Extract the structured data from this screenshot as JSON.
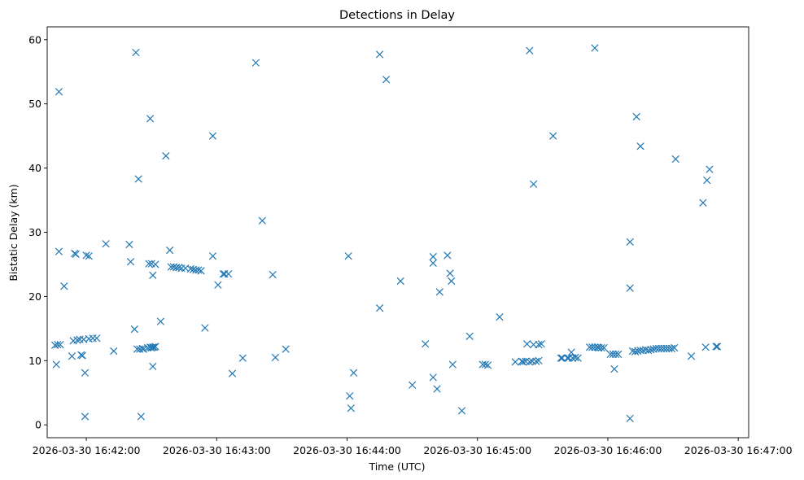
{
  "chart_data": {
    "type": "scatter",
    "title": "Detections in Delay",
    "xlabel": "Time (UTC)",
    "ylabel": "Bistatic Delay (km)",
    "marker": "x",
    "color": "#1f77b4",
    "x_unit": "minutes after 2026-03-30 16:41:00",
    "xlim": [
      0.7,
      6.08
    ],
    "ylim": [
      -2.0,
      62.0
    ],
    "x_ticks": [
      {
        "value": 1,
        "label": "2026-03-30 16:42:00"
      },
      {
        "value": 2,
        "label": "2026-03-30 16:43:00"
      },
      {
        "value": 3,
        "label": "2026-03-30 16:44:00"
      },
      {
        "value": 4,
        "label": "2026-03-30 16:45:00"
      },
      {
        "value": 5,
        "label": "2026-03-30 16:46:00"
      },
      {
        "value": 6,
        "label": "2026-03-30 16:47:00"
      }
    ],
    "y_ticks": [
      {
        "value": 0,
        "label": "0"
      },
      {
        "value": 10,
        "label": "10"
      },
      {
        "value": 20,
        "label": "20"
      },
      {
        "value": 30,
        "label": "30"
      },
      {
        "value": 40,
        "label": "40"
      },
      {
        "value": 50,
        "label": "50"
      },
      {
        "value": 60,
        "label": "60"
      }
    ],
    "points": [
      [
        0.76,
        12.4
      ],
      [
        0.78,
        12.5
      ],
      [
        0.8,
        12.5
      ],
      [
        0.77,
        9.4
      ],
      [
        0.79,
        51.9
      ],
      [
        0.79,
        27.0
      ],
      [
        0.83,
        21.6
      ],
      [
        0.89,
        10.7
      ],
      [
        0.9,
        13.1
      ],
      [
        0.91,
        26.7
      ],
      [
        0.92,
        26.6
      ],
      [
        0.93,
        13.2
      ],
      [
        0.95,
        13.3
      ],
      [
        0.96,
        10.9
      ],
      [
        0.97,
        10.8
      ],
      [
        0.98,
        13.3
      ],
      [
        0.99,
        8.1
      ],
      [
        0.99,
        1.3
      ],
      [
        1.0,
        26.4
      ],
      [
        1.02,
        26.3
      ],
      [
        1.02,
        13.4
      ],
      [
        1.05,
        13.5
      ],
      [
        1.08,
        13.5
      ],
      [
        1.15,
        28.2
      ],
      [
        1.21,
        11.5
      ],
      [
        1.33,
        28.1
      ],
      [
        1.34,
        25.4
      ],
      [
        1.37,
        14.9
      ],
      [
        1.38,
        58.0
      ],
      [
        1.39,
        11.8
      ],
      [
        1.4,
        38.3
      ],
      [
        1.41,
        11.8
      ],
      [
        1.42,
        1.3
      ],
      [
        1.43,
        11.9
      ],
      [
        1.44,
        11.8
      ],
      [
        1.47,
        12.0
      ],
      [
        1.49,
        12.1
      ],
      [
        1.5,
        12.0
      ],
      [
        1.51,
        12.1
      ],
      [
        1.52,
        12.1
      ],
      [
        1.53,
        12.2
      ],
      [
        1.48,
        25.1
      ],
      [
        1.5,
        25.1
      ],
      [
        1.53,
        25.0
      ],
      [
        1.49,
        47.7
      ],
      [
        1.51,
        23.3
      ],
      [
        1.51,
        9.1
      ],
      [
        1.57,
        16.1
      ],
      [
        1.61,
        41.9
      ],
      [
        1.64,
        27.2
      ],
      [
        1.65,
        24.6
      ],
      [
        1.67,
        24.6
      ],
      [
        1.69,
        24.5
      ],
      [
        1.71,
        24.5
      ],
      [
        1.73,
        24.4
      ],
      [
        1.76,
        24.4
      ],
      [
        1.8,
        24.3
      ],
      [
        1.82,
        24.2
      ],
      [
        1.84,
        24.1
      ],
      [
        1.86,
        24.1
      ],
      [
        1.88,
        24.0
      ],
      [
        1.91,
        15.1
      ],
      [
        1.97,
        26.3
      ],
      [
        1.97,
        45.0
      ],
      [
        2.01,
        21.8
      ],
      [
        2.05,
        23.5
      ],
      [
        2.06,
        23.5
      ],
      [
        2.09,
        23.5
      ],
      [
        2.12,
        8.0
      ],
      [
        2.2,
        10.4
      ],
      [
        2.3,
        56.4
      ],
      [
        2.35,
        31.8
      ],
      [
        2.43,
        23.4
      ],
      [
        2.45,
        10.5
      ],
      [
        2.53,
        11.8
      ],
      [
        3.01,
        26.3
      ],
      [
        3.02,
        4.5
      ],
      [
        3.03,
        2.6
      ],
      [
        3.05,
        8.1
      ],
      [
        3.25,
        57.7
      ],
      [
        3.25,
        18.2
      ],
      [
        3.3,
        53.8
      ],
      [
        3.41,
        22.4
      ],
      [
        3.5,
        6.2
      ],
      [
        3.6,
        12.6
      ],
      [
        3.66,
        25.2
      ],
      [
        3.66,
        26.2
      ],
      [
        3.66,
        7.4
      ],
      [
        3.69,
        5.6
      ],
      [
        3.71,
        20.7
      ],
      [
        3.77,
        26.4
      ],
      [
        3.79,
        23.6
      ],
      [
        3.8,
        22.4
      ],
      [
        3.81,
        9.4
      ],
      [
        3.88,
        2.2
      ],
      [
        3.94,
        13.8
      ],
      [
        4.04,
        9.4
      ],
      [
        4.06,
        9.4
      ],
      [
        4.08,
        9.3
      ],
      [
        4.17,
        16.8
      ],
      [
        4.29,
        9.8
      ],
      [
        4.34,
        9.9
      ],
      [
        4.35,
        9.8
      ],
      [
        4.37,
        9.9
      ],
      [
        4.38,
        12.6
      ],
      [
        4.4,
        9.8
      ],
      [
        4.42,
        9.9
      ],
      [
        4.45,
        9.9
      ],
      [
        4.47,
        10.0
      ],
      [
        4.43,
        12.5
      ],
      [
        4.47,
        12.5
      ],
      [
        4.49,
        12.6
      ],
      [
        4.4,
        58.3
      ],
      [
        4.43,
        37.5
      ],
      [
        4.58,
        45.0
      ],
      [
        4.64,
        10.4
      ],
      [
        4.65,
        10.4
      ],
      [
        4.69,
        10.4
      ],
      [
        4.7,
        10.4
      ],
      [
        4.72,
        11.3
      ],
      [
        4.73,
        10.4
      ],
      [
        4.75,
        10.5
      ],
      [
        4.77,
        10.4
      ],
      [
        4.86,
        12.1
      ],
      [
        4.88,
        12.1
      ],
      [
        4.9,
        12.1
      ],
      [
        4.92,
        12.1
      ],
      [
        4.93,
        12.0
      ],
      [
        4.95,
        12.0
      ],
      [
        4.97,
        12.0
      ],
      [
        4.9,
        58.7
      ],
      [
        5.02,
        11.0
      ],
      [
        5.04,
        11.0
      ],
      [
        5.06,
        11.0
      ],
      [
        5.08,
        11.0
      ],
      [
        5.05,
        8.7
      ],
      [
        5.17,
        28.5
      ],
      [
        5.17,
        21.3
      ],
      [
        5.17,
        1.0
      ],
      [
        5.19,
        11.5
      ],
      [
        5.21,
        11.4
      ],
      [
        5.23,
        11.5
      ],
      [
        5.25,
        11.6
      ],
      [
        5.27,
        11.6
      ],
      [
        5.29,
        11.7
      ],
      [
        5.31,
        11.6
      ],
      [
        5.33,
        11.7
      ],
      [
        5.35,
        11.8
      ],
      [
        5.37,
        11.9
      ],
      [
        5.39,
        11.9
      ],
      [
        5.41,
        11.9
      ],
      [
        5.43,
        11.9
      ],
      [
        5.45,
        11.9
      ],
      [
        5.47,
        11.9
      ],
      [
        5.49,
        11.9
      ],
      [
        5.51,
        12.0
      ],
      [
        5.22,
        48.0
      ],
      [
        5.25,
        43.4
      ],
      [
        5.52,
        41.4
      ],
      [
        5.64,
        10.7
      ],
      [
        5.73,
        34.6
      ],
      [
        5.76,
        38.1
      ],
      [
        5.78,
        39.8
      ],
      [
        5.75,
        12.1
      ],
      [
        5.83,
        12.2
      ],
      [
        5.84,
        12.2
      ]
    ]
  }
}
